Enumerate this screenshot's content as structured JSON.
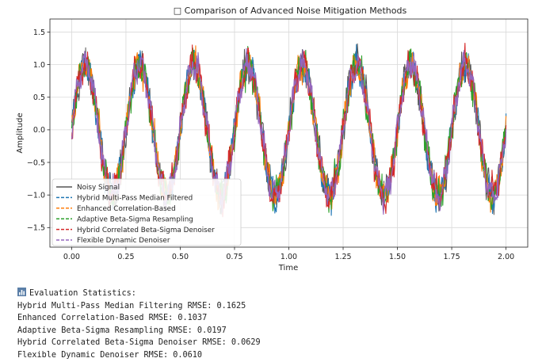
{
  "chart_data": {
    "type": "line",
    "title": "□ Comparison of Advanced Noise Mitigation Methods",
    "xlabel": "Time",
    "ylabel": "Amplitude",
    "xlim": [
      -0.1,
      2.1
    ],
    "ylim": [
      -1.8,
      1.7
    ],
    "x_ticks": [
      "0.00",
      "0.25",
      "0.50",
      "0.75",
      "1.00",
      "1.25",
      "1.50",
      "1.75",
      "2.00"
    ],
    "y_ticks": [
      "1.5",
      "1.0",
      "0.5",
      "0.0",
      "−0.5",
      "−1.0",
      "−1.5"
    ],
    "grid": true,
    "legend_position": "lower-left",
    "signal": {
      "frequency_hz": 4,
      "amplitude": 1.0,
      "duration_s": 2.0
    },
    "series": [
      {
        "name": "Noisy Signal",
        "color": "#555555",
        "style": "solid",
        "noise": 0.22
      },
      {
        "name": "Hybrid Multi-Pass Median Filtered",
        "color": "#1f77b4",
        "style": "dashed",
        "noise": 0.18
      },
      {
        "name": "Enhanced Correlation-Based",
        "color": "#ff7f0e",
        "style": "dashed",
        "noise": 0.2
      },
      {
        "name": "Adaptive Beta-Sigma Resampling",
        "color": "#2ca02c",
        "style": "dashed",
        "noise": 0.2
      },
      {
        "name": "Hybrid Correlated Beta-Sigma Denoiser",
        "color": "#d62728",
        "style": "dashed",
        "noise": 0.21
      },
      {
        "name": "Flexible Dynamic Denoiser",
        "color": "#9467bd",
        "style": "dashed",
        "noise": 0.17
      }
    ]
  },
  "stats": {
    "header": "Evaluation Statistics:",
    "icon": "bar-chart-icon",
    "lines": [
      "Hybrid Multi-Pass Median Filtering RMSE: 0.1625",
      "Enhanced Correlation-Based RMSE: 0.1037",
      "Adaptive Beta-Sigma Resampling RMSE: 0.0197",
      "Hybrid Correlated Beta-Sigma Denoiser RMSE: 0.0629",
      "Flexible Dynamic Denoiser RMSE: 0.0610"
    ]
  }
}
